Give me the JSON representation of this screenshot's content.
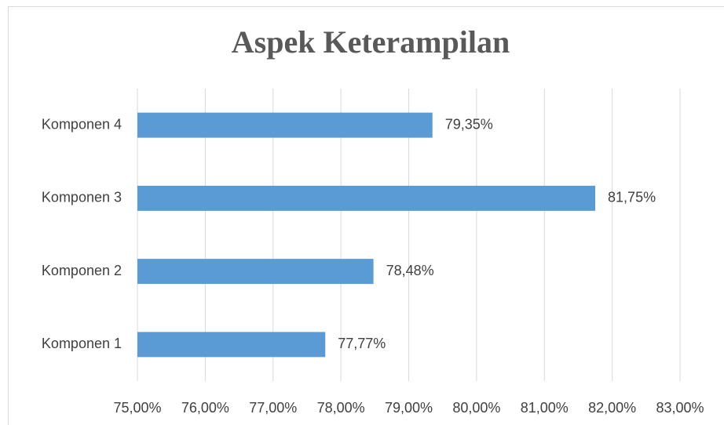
{
  "chart_data": {
    "type": "barh",
    "title": "Aspek Keterampilan",
    "categories": [
      "Komponen 1",
      "Komponen 2",
      "Komponen 3",
      "Komponen 4"
    ],
    "values": [
      77.77,
      78.48,
      81.75,
      79.35
    ],
    "value_labels": [
      "77,77%",
      "78,48%",
      "81,75%",
      "79,35%"
    ],
    "color": "#5b9bd5",
    "xlim": [
      75,
      83
    ],
    "xticks": [
      {
        "value": 75,
        "label": "75,00%"
      },
      {
        "value": 76,
        "label": "76,00%"
      },
      {
        "value": 77,
        "label": "77,00%"
      },
      {
        "value": 78,
        "label": "78,00%"
      },
      {
        "value": 79,
        "label": "79,00%"
      },
      {
        "value": 80,
        "label": "80,00%"
      },
      {
        "value": 81,
        "label": "81,00%"
      },
      {
        "value": 82,
        "label": "82,00%"
      },
      {
        "value": 83,
        "label": "83,00%"
      }
    ],
    "grid": true
  }
}
